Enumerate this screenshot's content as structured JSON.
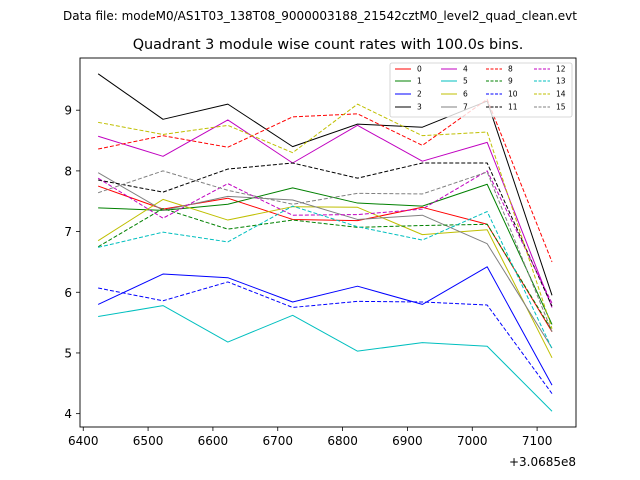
{
  "header": {
    "data_file_label": "Data file: modeM0/AS1T03_138T08_9000003188_21542cztM0_level2_quad_clean.evt"
  },
  "chart_data": {
    "type": "line",
    "title": "Quadrant 3 module wise count rates with 100.0s bins.",
    "xlabel": "",
    "ylabel": "",
    "x_offset_label": "+3.0685e8",
    "x": [
      6423,
      6523,
      6623,
      6723,
      6823,
      6923,
      7023,
      7123
    ],
    "xlim": [
      6395,
      7160
    ],
    "ylim": [
      3.78,
      9.86
    ],
    "xticks": [
      6400,
      6500,
      6600,
      6700,
      6800,
      6900,
      7000,
      7100
    ],
    "xtick_labels": [
      "6400",
      "6500",
      "6600",
      "6700",
      "6800",
      "6900",
      "7000",
      "7100"
    ],
    "yticks": [
      4,
      5,
      6,
      7,
      8,
      9
    ],
    "ytick_labels": [
      "4",
      "5",
      "6",
      "7",
      "8",
      "9"
    ],
    "grid": false,
    "legend_position": "top-right",
    "series": [
      {
        "name": "0",
        "color": "#ff0000",
        "dash": "solid",
        "values": [
          7.75,
          7.37,
          7.55,
          7.2,
          7.18,
          7.4,
          7.12,
          5.35
        ]
      },
      {
        "name": "1",
        "color": "#008000",
        "dash": "solid",
        "values": [
          7.39,
          7.35,
          7.45,
          7.72,
          7.47,
          7.42,
          7.78,
          5.47
        ]
      },
      {
        "name": "2",
        "color": "#0000ff",
        "dash": "solid",
        "values": [
          5.8,
          6.3,
          6.24,
          5.84,
          6.1,
          5.8,
          6.42,
          4.47
        ]
      },
      {
        "name": "3",
        "color": "#000000",
        "dash": "solid",
        "values": [
          9.6,
          8.85,
          9.1,
          8.4,
          8.77,
          8.72,
          9.15,
          5.95
        ]
      },
      {
        "name": "4",
        "color": "#c000c0",
        "dash": "solid",
        "values": [
          8.57,
          8.24,
          8.84,
          8.13,
          8.75,
          8.16,
          8.47,
          5.75
        ]
      },
      {
        "name": "5",
        "color": "#00bfbf",
        "dash": "solid",
        "values": [
          5.6,
          5.78,
          5.18,
          5.62,
          5.03,
          5.17,
          5.11,
          4.04
        ]
      },
      {
        "name": "6",
        "color": "#bfbf00",
        "dash": "solid",
        "values": [
          6.85,
          7.53,
          7.19,
          7.41,
          7.4,
          6.95,
          7.03,
          4.92
        ]
      },
      {
        "name": "7",
        "color": "#808080",
        "dash": "solid",
        "values": [
          7.97,
          7.35,
          7.58,
          7.52,
          7.2,
          7.27,
          6.8,
          5.08
        ]
      },
      {
        "name": "8",
        "color": "#ff0000",
        "dash": "dashed",
        "values": [
          8.36,
          8.58,
          8.39,
          8.89,
          8.94,
          8.42,
          9.18,
          6.5
        ]
      },
      {
        "name": "9",
        "color": "#008000",
        "dash": "dashed",
        "values": [
          6.75,
          7.38,
          7.04,
          7.19,
          7.07,
          7.1,
          7.12,
          5.37
        ]
      },
      {
        "name": "10",
        "color": "#0000ff",
        "dash": "dashed",
        "values": [
          6.07,
          5.86,
          6.17,
          5.75,
          5.85,
          5.84,
          5.79,
          4.33
        ]
      },
      {
        "name": "11",
        "color": "#000000",
        "dash": "dashed",
        "values": [
          7.85,
          7.65,
          8.03,
          8.13,
          7.88,
          8.13,
          8.13,
          5.77
        ]
      },
      {
        "name": "12",
        "color": "#c000c0",
        "dash": "dashed",
        "values": [
          7.88,
          7.22,
          7.79,
          7.27,
          7.28,
          7.37,
          8.0,
          5.82
        ]
      },
      {
        "name": "13",
        "color": "#00bfbf",
        "dash": "dashed",
        "values": [
          6.74,
          6.99,
          6.83,
          7.42,
          7.08,
          6.86,
          7.33,
          5.07
        ]
      },
      {
        "name": "14",
        "color": "#bfbf00",
        "dash": "dashed",
        "values": [
          8.8,
          8.6,
          8.75,
          8.3,
          9.1,
          8.58,
          8.64,
          5.4
        ]
      },
      {
        "name": "15",
        "color": "#808080",
        "dash": "dashed",
        "values": [
          7.64,
          8.0,
          7.68,
          7.45,
          7.63,
          7.62,
          7.98,
          5.35
        ]
      }
    ]
  }
}
